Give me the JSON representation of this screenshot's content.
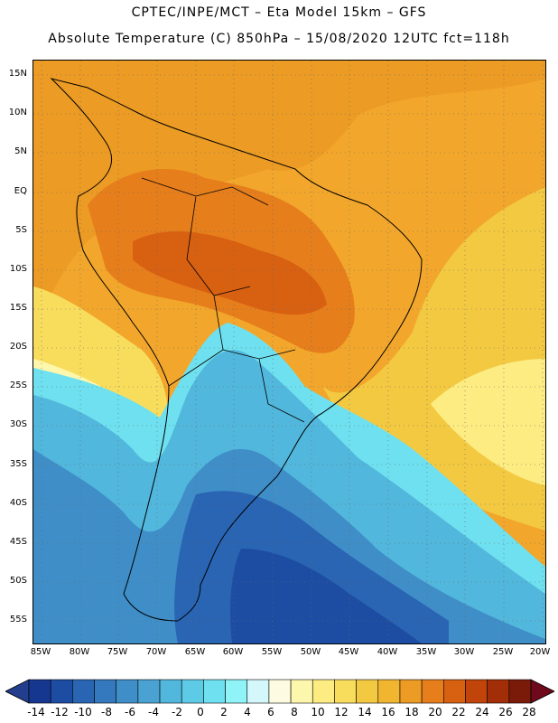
{
  "header": {
    "line1": "CPTEC/INPE/MCT –  Eta Model 15km – GFS",
    "line2": "Absolute Temperature (C) 850hPa – 15/08/2020 12UTC fct=118h"
  },
  "lat_labels": [
    "15N",
    "10N",
    "5N",
    "EQ",
    "5S",
    "10S",
    "15S",
    "20S",
    "25S",
    "30S",
    "35S",
    "40S",
    "45S",
    "50S",
    "55S"
  ],
  "lon_labels": [
    "85W",
    "80W",
    "75W",
    "70W",
    "65W",
    "60W",
    "55W",
    "50W",
    "45W",
    "40W",
    "35W",
    "30W",
    "25W",
    "20W"
  ],
  "colorbar": {
    "labels": [
      "-14",
      "-12",
      "-10",
      "-8",
      "-6",
      "-4",
      "-2",
      "0",
      "2",
      "4",
      "6",
      "8",
      "10",
      "12",
      "14",
      "16",
      "18",
      "20",
      "22",
      "24",
      "26",
      "28"
    ],
    "colors": [
      "#16378f",
      "#1d4da3",
      "#2a65b3",
      "#3479bd",
      "#3f8ec8",
      "#49a2d2",
      "#52b7dc",
      "#5dcbe6",
      "#6fe0ef",
      "#8ff3f7",
      "#d3f7fa",
      "#fdfbe2",
      "#fdf7ad",
      "#fcec82",
      "#f8dd5d",
      "#f3c942",
      "#f1b530",
      "#ec9b24",
      "#e67e1c",
      "#d86011",
      "#c1450a",
      "#a22e08",
      "#7a1a08"
    ],
    "under_color": "#233e8c",
    "over_color": "#6e0a1c"
  }
}
